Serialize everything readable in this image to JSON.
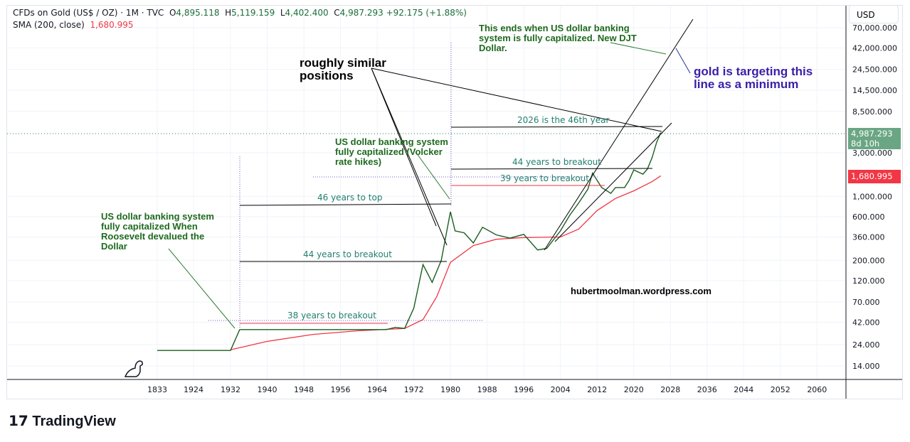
{
  "header": {
    "symbol": "CFDs on Gold (US$ / OZ) · 1M · TVC",
    "open_label": "O",
    "open": "4,895.118",
    "high_label": "H",
    "high": "5,119.159",
    "low_label": "L",
    "low": "4,402.400",
    "close_label": "C",
    "close": "4,987.293",
    "change": "+92.175 (+1.88%)",
    "sma_label": "SMA (200, close)",
    "sma_value": "1,680.995"
  },
  "currency_button": "USD",
  "price_badge": {
    "value": "4,987.293",
    "countdown": "8d 10h",
    "color": "#6aa684"
  },
  "sma_badge": {
    "value": "1,680.995",
    "color": "#f23645"
  },
  "annotations": {
    "similar": "roughly similar positions",
    "volcker": "US dollar banking system fully capitalized (Volcker rate hikes)",
    "djt": "This ends when US dollar banking system is fully capitalized. New DJT Dollar.",
    "target": "gold is targeting this line as a minimum",
    "roosevelt": "US dollar banking system fully capitalized When Roosevelt devalued the Dollar",
    "site": "hubertmoolman.wordpress.com",
    "l38": "38 years to breakout",
    "l44a": "44 years to breakout",
    "l46": "46 years to top",
    "l2026": "2026 is the 46th year",
    "l44b": "44 years to breakout",
    "l39": "39 years to breakout"
  },
  "logo": "TradingView",
  "chart_data": {
    "type": "line",
    "scale": "log",
    "grid": true,
    "ylim": [
      14,
      70000
    ],
    "x_ticks": [
      "1833",
      "1924",
      "1932",
      "1940",
      "1948",
      "1956",
      "1964",
      "1972",
      "1980",
      "1988",
      "1996",
      "2004",
      "2012",
      "2020",
      "2028",
      "2036",
      "2044",
      "2052",
      "2060"
    ],
    "y_ticks": [
      "14.000",
      "24.000",
      "42.000",
      "70.000",
      "120.000",
      "200.000",
      "360.000",
      "600.000",
      "1,000.000",
      "3,000.000",
      "8,500.000",
      "14,500.000",
      "24,500.000",
      "42,000.000",
      "70,000.000"
    ],
    "price": {
      "color": "#1b5e20",
      "points": [
        [
          1833,
          20.67
        ],
        [
          1924,
          20.67
        ],
        [
          1932,
          20.67
        ],
        [
          1934,
          35
        ],
        [
          1966,
          35
        ],
        [
          1968,
          37
        ],
        [
          1970,
          36
        ],
        [
          1972,
          60
        ],
        [
          1974,
          180
        ],
        [
          1976,
          115
        ],
        [
          1978,
          200
        ],
        [
          1980,
          680
        ],
        [
          1981,
          420
        ],
        [
          1983,
          400
        ],
        [
          1985,
          310
        ],
        [
          1987,
          460
        ],
        [
          1990,
          380
        ],
        [
          1993,
          350
        ],
        [
          1996,
          385
        ],
        [
          1999,
          260
        ],
        [
          2001,
          270
        ],
        [
          2004,
          420
        ],
        [
          2006,
          620
        ],
        [
          2008,
          850
        ],
        [
          2010,
          1200
        ],
        [
          2011,
          1800
        ],
        [
          2013,
          1250
        ],
        [
          2015,
          1080
        ],
        [
          2016,
          1250
        ],
        [
          2018,
          1250
        ],
        [
          2019,
          1500
        ],
        [
          2020,
          1950
        ],
        [
          2022,
          1750
        ],
        [
          2023,
          2000
        ],
        [
          2024,
          2650
        ],
        [
          2025,
          3900
        ],
        [
          2025.9,
          4987.293
        ]
      ]
    },
    "sma": {
      "name": "SMA (200, close)",
      "color": "#f23645",
      "points": [
        [
          1932,
          21
        ],
        [
          1940,
          26
        ],
        [
          1950,
          31
        ],
        [
          1960,
          34
        ],
        [
          1970,
          36
        ],
        [
          1974,
          45
        ],
        [
          1977,
          80
        ],
        [
          1980,
          190
        ],
        [
          1985,
          290
        ],
        [
          1990,
          340
        ],
        [
          1996,
          355
        ],
        [
          2004,
          360
        ],
        [
          2008,
          440
        ],
        [
          2012,
          700
        ],
        [
          2016,
          950
        ],
        [
          2020,
          1150
        ],
        [
          2024,
          1450
        ],
        [
          2025.9,
          1680.995
        ]
      ]
    },
    "last_price": 4987.293
  }
}
